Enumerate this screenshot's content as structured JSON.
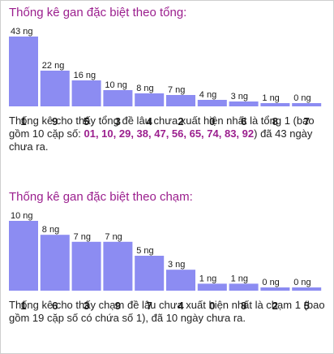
{
  "colors": {
    "bar": "#8c8cf2",
    "title": "#9b1f8e",
    "highlight": "#9b1f8e"
  },
  "sections": [
    {
      "title": "Thống kê gan đặc biệt theo tổng:",
      "description_parts": {
        "before": "Thống kê cho thấy tổng đề lâu chưa xuất hiện nhất là tổng 1 (bao gồm 10 cặp số: ",
        "numbers": "01, 10, 29, 38, 47, 56, 65, 74, 83, 92",
        "after": ") đã 43 ngày chưa ra."
      }
    },
    {
      "title": "Thống kê gan đặc biệt theo chạm:",
      "description_parts": {
        "before": "Thống kê cho thấy chạm đề lâu chưa xuất hiện nhất là chạm 1 (bao gồm 19 cặp số có chứa số 1), đã 10 ngày chưa ra.",
        "numbers": "",
        "after": ""
      }
    }
  ],
  "chart_data": [
    {
      "type": "bar",
      "title": "Thống kê gan đặc biệt theo tổng:",
      "categories": [
        "1",
        "9",
        "5",
        "3",
        "4",
        "2",
        "0",
        "6",
        "8",
        "7"
      ],
      "values": [
        43,
        22,
        16,
        10,
        8,
        7,
        4,
        3,
        1,
        0
      ],
      "value_labels": [
        "43 ng",
        "22 ng",
        "16 ng",
        "10 ng",
        "8 ng",
        "7 ng",
        "4 ng",
        "3 ng",
        "1 ng",
        "0 ng"
      ],
      "xlabel": "",
      "ylabel": "",
      "ylim": [
        0,
        43
      ],
      "grid": false
    },
    {
      "type": "bar",
      "title": "Thống kê gan đặc biệt theo chạm:",
      "categories": [
        "1",
        "6",
        "3",
        "9",
        "7",
        "4",
        "0",
        "8",
        "2",
        "5"
      ],
      "values": [
        10,
        8,
        7,
        7,
        5,
        3,
        1,
        1,
        0,
        0
      ],
      "value_labels": [
        "10 ng",
        "8 ng",
        "7 ng",
        "7 ng",
        "5 ng",
        "3 ng",
        "1 ng",
        "1 ng",
        "0 ng",
        "0 ng"
      ],
      "xlabel": "",
      "ylabel": "",
      "ylim": [
        0,
        10
      ],
      "grid": false
    }
  ]
}
